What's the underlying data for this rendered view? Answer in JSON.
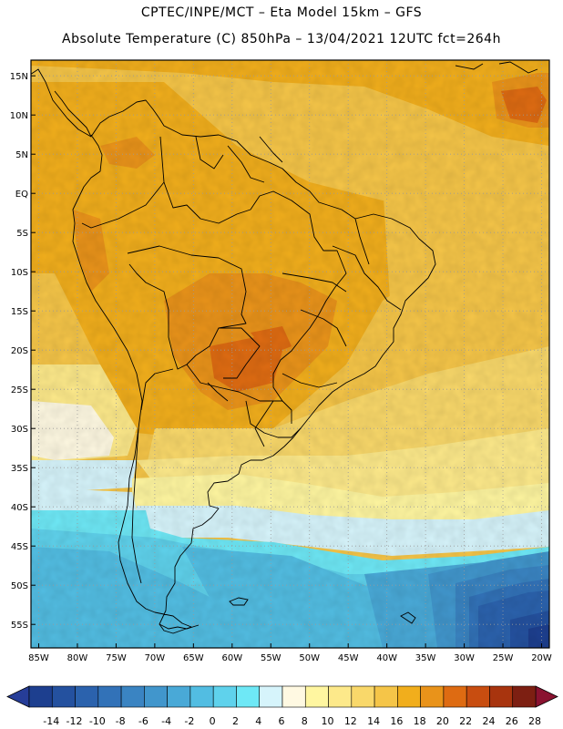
{
  "title_line1": "CPTEC/INPE/MCT –  Eta Model 15km – GFS",
  "title_line2": "Absolute Temperature (C) 850hPa – 13/04/2021 12UTC fct=264h",
  "map": {
    "lon_range": [
      -86,
      -19
    ],
    "lat_range": [
      -58,
      17
    ],
    "lat_labels": [
      {
        "lat": 15,
        "text": "15N"
      },
      {
        "lat": 10,
        "text": "10N"
      },
      {
        "lat": 5,
        "text": "5N"
      },
      {
        "lat": 0,
        "text": "EQ"
      },
      {
        "lat": -5,
        "text": "5S"
      },
      {
        "lat": -10,
        "text": "10S"
      },
      {
        "lat": -15,
        "text": "15S"
      },
      {
        "lat": -20,
        "text": "20S"
      },
      {
        "lat": -25,
        "text": "25S"
      },
      {
        "lat": -30,
        "text": "30S"
      },
      {
        "lat": -35,
        "text": "35S"
      },
      {
        "lat": -40,
        "text": "40S"
      },
      {
        "lat": -45,
        "text": "45S"
      },
      {
        "lat": -50,
        "text": "50S"
      },
      {
        "lat": -55,
        "text": "55S"
      }
    ],
    "lon_labels": [
      {
        "lon": -85,
        "text": "85W"
      },
      {
        "lon": -80,
        "text": "80W"
      },
      {
        "lon": -75,
        "text": "75W"
      },
      {
        "lon": -70,
        "text": "70W"
      },
      {
        "lon": -65,
        "text": "65W"
      },
      {
        "lon": -60,
        "text": "60W"
      },
      {
        "lon": -55,
        "text": "55W"
      },
      {
        "lon": -50,
        "text": "50W"
      },
      {
        "lon": -45,
        "text": "45W"
      },
      {
        "lon": -40,
        "text": "40W"
      },
      {
        "lon": -35,
        "text": "35W"
      },
      {
        "lon": -30,
        "text": "30W"
      },
      {
        "lon": -25,
        "text": "25W"
      },
      {
        "lon": -20,
        "text": "20W"
      }
    ]
  },
  "colorbar": {
    "labels": [
      "-14",
      "-12",
      "-10",
      "-8",
      "-6",
      "-4",
      "-2",
      "0",
      "2",
      "4",
      "6",
      "8",
      "10",
      "12",
      "14",
      "16",
      "18",
      "20",
      "22",
      "24",
      "26",
      "28"
    ],
    "colors": [
      "#1d3f8f",
      "#24519f",
      "#2b62ad",
      "#3272b8",
      "#3a84c2",
      "#4196cc",
      "#49a9d7",
      "#52bde2",
      "#5fd2ec",
      "#6ee8f6",
      "#d6f4fb",
      "#fff9e2",
      "#fff6a0",
      "#fde98a",
      "#f9d86a",
      "#f5c548",
      "#f1ae1c",
      "#e9931a",
      "#de6b12",
      "#c84d10",
      "#a8340e",
      "#7d1f12"
    ],
    "low_color": "#263d98",
    "high_color": "#8a1230"
  }
}
